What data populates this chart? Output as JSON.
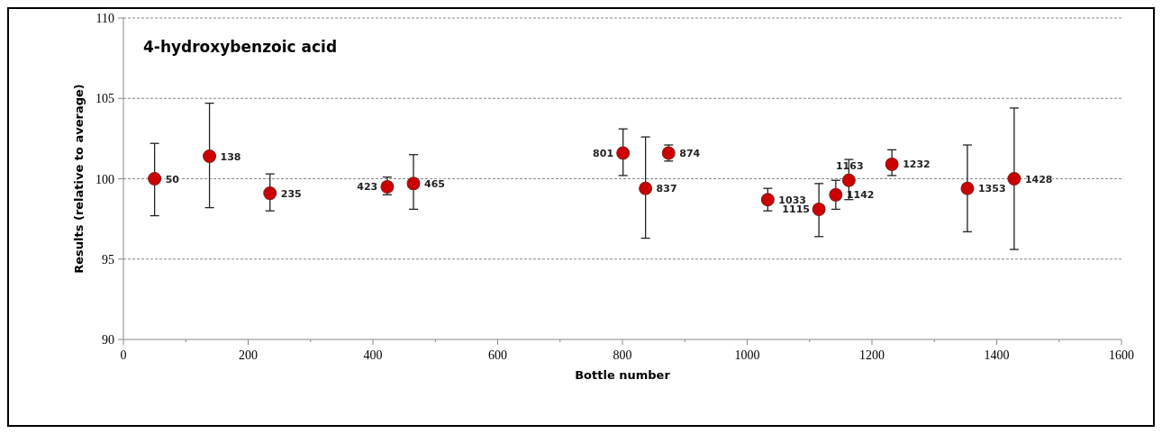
{
  "chart_data": {
    "type": "scatter",
    "title": "4-hydroxybenzoic acid",
    "xlabel": "Bottle number",
    "ylabel": "Results (relative to average)",
    "x": [
      50,
      138,
      235,
      423,
      465,
      801,
      837,
      874,
      1033,
      1115,
      1142,
      1163,
      1232,
      1353,
      1428
    ],
    "series": [
      {
        "color": "#cc0000",
        "values": [
          100.0,
          101.4,
          99.1,
          99.5,
          99.7,
          101.6,
          99.4,
          101.6,
          98.7,
          98.1,
          99.0,
          99.9,
          100.9,
          99.4,
          100.0
        ],
        "errors": [
          [
            97.7,
            102.2
          ],
          [
            98.2,
            104.7
          ],
          [
            98.0,
            100.3
          ],
          [
            99.0,
            100.1
          ],
          [
            98.1,
            101.5
          ],
          [
            100.2,
            103.1
          ],
          [
            96.3,
            102.6
          ],
          [
            101.1,
            102.1
          ],
          [
            98.0,
            99.4
          ],
          [
            96.4,
            99.7
          ],
          [
            98.1,
            99.9
          ],
          [
            98.7,
            101.2
          ],
          [
            100.2,
            101.8
          ],
          [
            96.7,
            102.1
          ],
          [
            95.6,
            104.4
          ]
        ]
      }
    ],
    "annotations": [
      {
        "text": "50",
        "x": 50,
        "y": 100.0
      },
      {
        "text": "138",
        "x": 138,
        "y": 101.4
      },
      {
        "text": "235",
        "x": 235,
        "y": 99.1
      },
      {
        "text": "423",
        "x": 423,
        "y": 99.5
      },
      {
        "text": "465",
        "x": 465,
        "y": 99.7
      },
      {
        "text": "801",
        "x": 801,
        "y": 101.6
      },
      {
        "text": "837",
        "x": 837,
        "y": 99.4
      },
      {
        "text": "874",
        "x": 874,
        "y": 101.6
      },
      {
        "text": "1033",
        "x": 1033,
        "y": 98.7
      },
      {
        "text": "1115",
        "x": 1115,
        "y": 98.1
      },
      {
        "text": "1142",
        "x": 1142,
        "y": 99.0
      },
      {
        "text": "1163",
        "x": 1163,
        "y": 99.9
      },
      {
        "text": "1232",
        "x": 1232,
        "y": 100.9
      },
      {
        "text": "1353",
        "x": 1353,
        "y": 99.4
      },
      {
        "text": "1428",
        "x": 1428,
        "y": 100.0
      }
    ],
    "xlim": [
      0,
      1600
    ],
    "xticks": [
      0,
      200,
      400,
      600,
      800,
      1000,
      1200,
      1400,
      1600
    ],
    "ylim": [
      90,
      110
    ],
    "yticks": [
      90,
      95,
      100,
      105,
      110
    ],
    "grid": "y",
    "marker": "circle"
  }
}
